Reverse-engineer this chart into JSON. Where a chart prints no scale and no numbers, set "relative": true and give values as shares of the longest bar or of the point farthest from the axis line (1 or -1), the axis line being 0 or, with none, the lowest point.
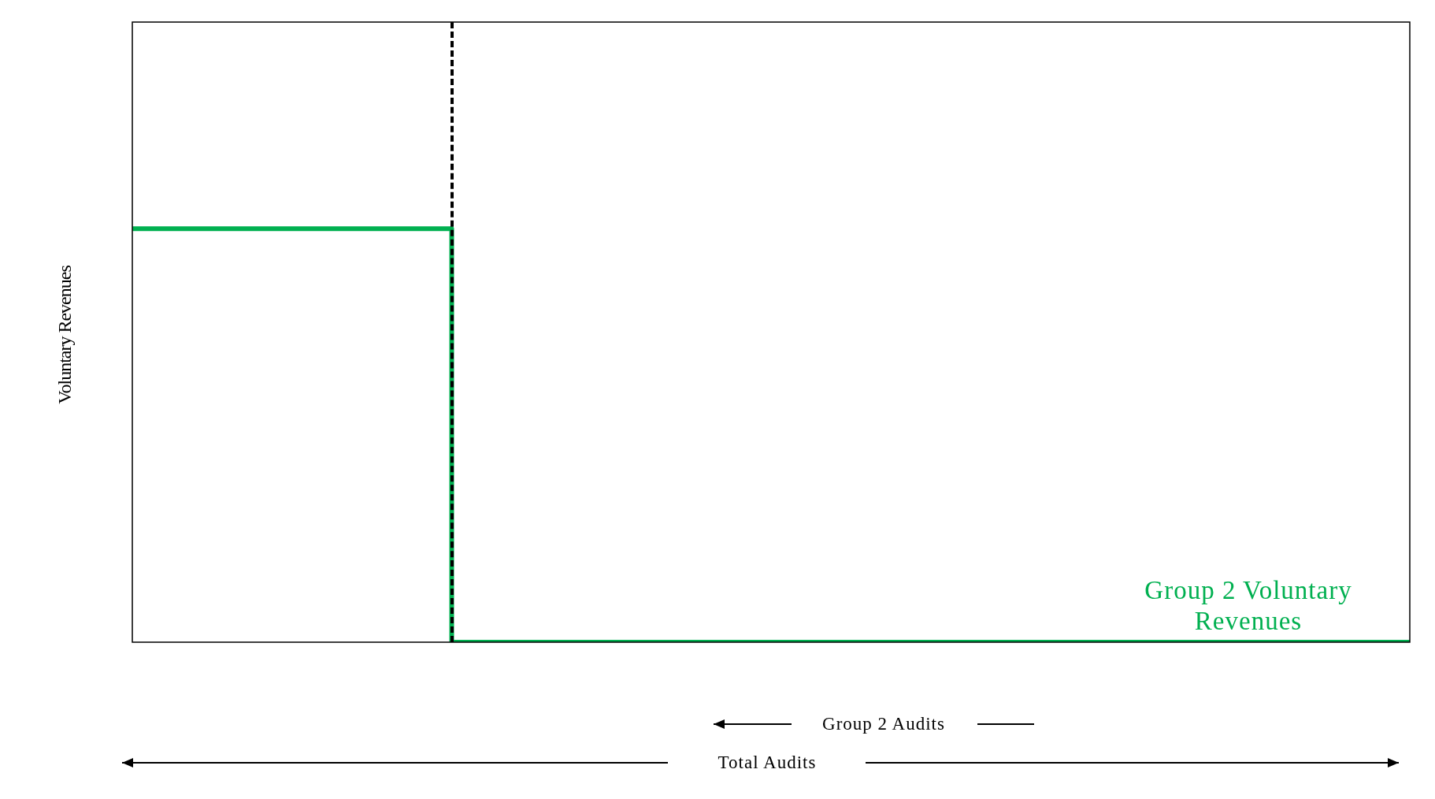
{
  "chart_data": {
    "type": "step",
    "relative": true,
    "ylabel": "Voluntary Revenues",
    "categories": [
      null,
      null,
      null,
      null,
      null
    ],
    "series": [
      {
        "name": "Group 2 Voluntary Revenues",
        "color": "#00b050",
        "values": [
          1,
          1,
          0,
          0,
          0
        ]
      }
    ],
    "annotations": [
      "Group 2 Audits",
      "Total Audits"
    ],
    "tick_labels": false
  }
}
